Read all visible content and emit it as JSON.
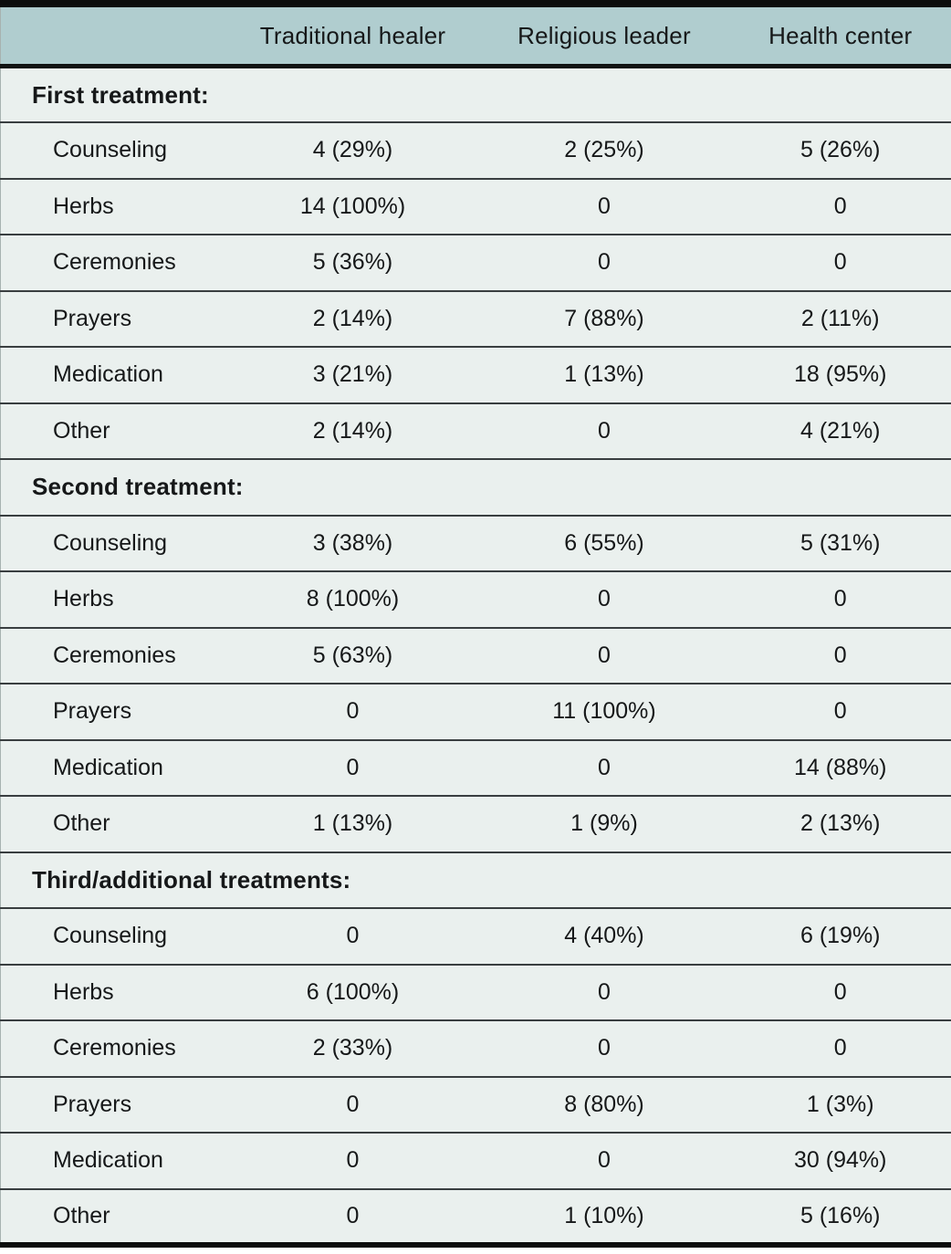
{
  "chart_data": {
    "type": "table",
    "columns": [
      "Traditional healer",
      "Religious leader",
      "Health center"
    ],
    "sections": [
      {
        "title": "First treatment:",
        "rows": [
          {
            "label": "Counseling",
            "values": [
              "4 (29%)",
              "2 (25%)",
              "5 (26%)"
            ]
          },
          {
            "label": "Herbs",
            "values": [
              "14 (100%)",
              "0",
              "0"
            ]
          },
          {
            "label": "Ceremonies",
            "values": [
              "5 (36%)",
              "0",
              "0"
            ]
          },
          {
            "label": "Prayers",
            "values": [
              "2 (14%)",
              "7 (88%)",
              "2 (11%)"
            ]
          },
          {
            "label": "Medication",
            "values": [
              "3 (21%)",
              "1 (13%)",
              "18 (95%)"
            ]
          },
          {
            "label": "Other",
            "values": [
              "2 (14%)",
              "0",
              "4 (21%)"
            ]
          }
        ]
      },
      {
        "title": "Second treatment:",
        "rows": [
          {
            "label": "Counseling",
            "values": [
              "3 (38%)",
              "6 (55%)",
              "5 (31%)"
            ]
          },
          {
            "label": "Herbs",
            "values": [
              "8 (100%)",
              "0",
              "0"
            ]
          },
          {
            "label": "Ceremonies",
            "values": [
              "5 (63%)",
              "0",
              "0"
            ]
          },
          {
            "label": "Prayers",
            "values": [
              "0",
              "11 (100%)",
              "0"
            ]
          },
          {
            "label": "Medication",
            "values": [
              "0",
              "0",
              "14 (88%)"
            ]
          },
          {
            "label": "Other",
            "values": [
              "1 (13%)",
              "1 (9%)",
              "2 (13%)"
            ]
          }
        ]
      },
      {
        "title": "Third/additional treatments:",
        "rows": [
          {
            "label": "Counseling",
            "values": [
              "0",
              "4 (40%)",
              "6 (19%)"
            ]
          },
          {
            "label": "Herbs",
            "values": [
              "6 (100%)",
              "0",
              "0"
            ]
          },
          {
            "label": "Ceremonies",
            "values": [
              "2 (33%)",
              "0",
              "0"
            ]
          },
          {
            "label": "Prayers",
            "values": [
              "0",
              "8 (80%)",
              "1 (3%)"
            ]
          },
          {
            "label": "Medication",
            "values": [
              "0",
              "0",
              "30 (94%)"
            ]
          },
          {
            "label": "Other",
            "values": [
              "0",
              "1 (10%)",
              "5 (16%)"
            ]
          }
        ]
      }
    ],
    "colors": {
      "header_bg": "#b0cdcf",
      "body_bg": "#eaf0ee",
      "rule": "#393e40",
      "heavy_border": "#0c0d0d",
      "text": "#161819"
    }
  }
}
